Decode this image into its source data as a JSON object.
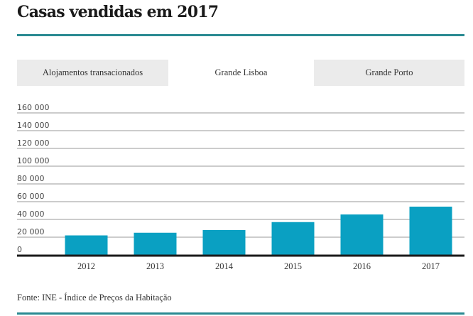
{
  "header": {
    "title": "Casas vendidas em 2017"
  },
  "tabs": [
    {
      "label": "Alojamentos transacionados",
      "active": false
    },
    {
      "label": "Grande Lisboa",
      "active": true
    },
    {
      "label": "Grande Porto",
      "active": false
    }
  ],
  "colors": {
    "bar": "#0aa0c2",
    "accent_rule": "#2a8a92",
    "gridline": "#999999",
    "baseline": "#1a1a1a",
    "tab_inactive": "#ebebeb"
  },
  "chart_data": {
    "type": "bar",
    "title": "Casas vendidas em 2017",
    "xlabel": "",
    "ylabel": "",
    "categories": [
      "2012",
      "2013",
      "2014",
      "2015",
      "2016",
      "2017"
    ],
    "values": [
      22000,
      25000,
      28000,
      37000,
      45600,
      54400
    ],
    "ylim": [
      0,
      160000
    ],
    "yticks": [
      0,
      20000,
      40000,
      60000,
      80000,
      100000,
      120000,
      140000,
      160000
    ],
    "ytick_labels": [
      "0",
      "20 000",
      "40 000",
      "60 000",
      "80 000",
      "100 000",
      "120 000",
      "140 000",
      "160 000"
    ],
    "grid": true,
    "legend": "none"
  },
  "footer": {
    "source": "Fonte: INE - Índice de Preços da Habitação"
  }
}
